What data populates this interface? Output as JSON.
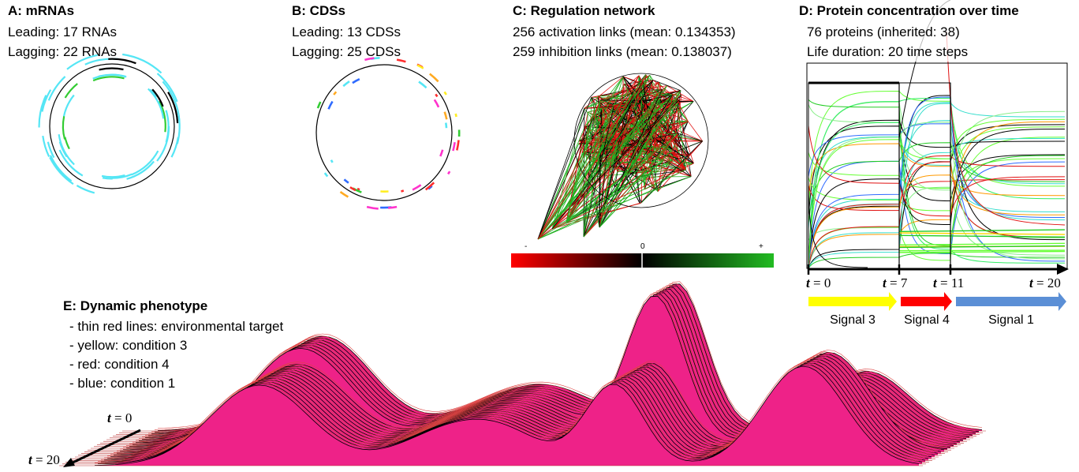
{
  "panelA": {
    "title": "A: mRNAs",
    "line1": "Leading: 17 RNAs",
    "line2": "Lagging: 22 RNAs",
    "colors": [
      "#55e6f5",
      "#000000",
      "#33cc33"
    ]
  },
  "panelB": {
    "title": "B: CDSs",
    "line1": "Leading: 13 CDSs",
    "line2": "Lagging: 25 CDSs",
    "colors": [
      "#ff2d2d",
      "#ff33cc",
      "#33cc33",
      "#2f6bff",
      "#ffaa22",
      "#ffee22",
      "#55e6f5"
    ]
  },
  "panelC": {
    "title": "C: Regulation network",
    "line1": "256 activation links (mean: 0.134353)",
    "line2": "259 inhibition links (mean: 0.138037)",
    "scale_minus": "-",
    "scale_zero": "0",
    "scale_plus": "+",
    "colors": {
      "inhibition": "#e01010",
      "neutral": "#000000",
      "activation": "#22b222"
    }
  },
  "panelD": {
    "title": "D: Protein concentration over time",
    "line1": "76 proteins (inherited: 38)",
    "line2": "Life duration: 20 time steps",
    "times": [
      {
        "t": "t",
        "eq": " = 0"
      },
      {
        "t": "t",
        "eq": " = 7"
      },
      {
        "t": "t",
        "eq": " = 11"
      },
      {
        "t": "t",
        "eq": " = 20"
      }
    ],
    "signals": [
      {
        "label": "Signal 3",
        "color": "#ffff00"
      },
      {
        "label": "Signal 4",
        "color": "#ff0000"
      },
      {
        "label": "Signal 1",
        "color": "#5b8fd6"
      }
    ]
  },
  "panelE": {
    "title": "E: Dynamic phenotype",
    "legend": [
      "- thin red lines: environmental target",
      "- yellow: condition 3",
      "- red: condition 4",
      "- blue: condition 1"
    ],
    "t_start": {
      "t": "t",
      "eq": " = 0"
    },
    "t_end": {
      "t": "t",
      "eq": " = 20"
    }
  }
}
